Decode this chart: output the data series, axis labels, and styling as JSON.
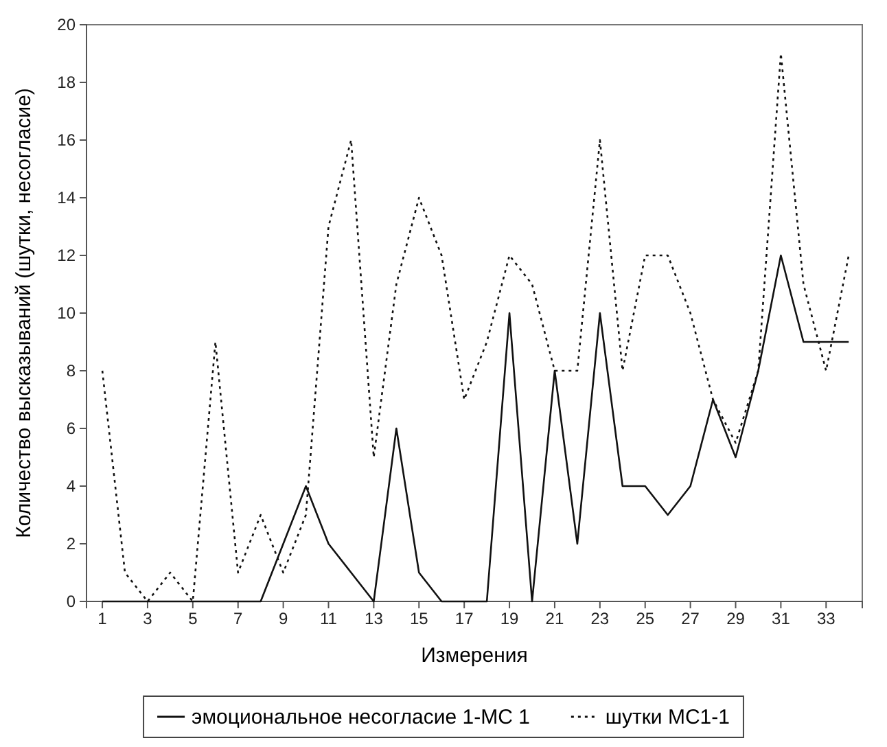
{
  "chart_data": {
    "type": "line",
    "xlabel": "Измерения",
    "ylabel": "Количество высказываний (шутки, несогласие)",
    "x": [
      1,
      2,
      3,
      4,
      5,
      6,
      7,
      8,
      9,
      10,
      11,
      12,
      13,
      14,
      15,
      16,
      17,
      18,
      19,
      20,
      21,
      22,
      23,
      24,
      25,
      26,
      27,
      28,
      29,
      30,
      31,
      32,
      33,
      34
    ],
    "xlim": [
      0.3,
      34.6
    ],
    "xticks": [
      1,
      3,
      5,
      7,
      9,
      11,
      13,
      15,
      17,
      19,
      21,
      23,
      25,
      27,
      29,
      31,
      33
    ],
    "ylim": [
      0,
      20
    ],
    "yticks": [
      0,
      2,
      4,
      6,
      8,
      10,
      12,
      14,
      16,
      18,
      20
    ],
    "grid": false,
    "legend": "bottom",
    "marker": "none",
    "series": [
      {
        "name": "эмоциональное несогласие 1-МС 1",
        "color": "#111111",
        "line_style": "solid",
        "values": [
          0,
          0,
          0,
          0,
          0,
          0,
          0,
          0,
          2,
          4,
          2,
          1,
          0,
          6,
          1,
          0,
          0,
          0,
          10,
          0,
          8,
          2,
          10,
          4,
          4,
          3,
          4,
          7,
          5,
          8,
          12,
          9,
          9,
          9
        ]
      },
      {
        "name": "шутки МС1-1",
        "color": "#111111",
        "line_style": "dotted",
        "values": [
          8,
          1,
          0,
          1,
          0,
          9,
          1,
          3,
          1,
          3,
          13,
          16,
          5,
          11,
          14,
          12,
          7,
          9,
          12,
          11,
          8,
          8,
          16,
          8,
          12,
          12,
          10,
          7,
          5.5,
          8,
          19,
          11,
          8,
          12
        ]
      }
    ]
  }
}
